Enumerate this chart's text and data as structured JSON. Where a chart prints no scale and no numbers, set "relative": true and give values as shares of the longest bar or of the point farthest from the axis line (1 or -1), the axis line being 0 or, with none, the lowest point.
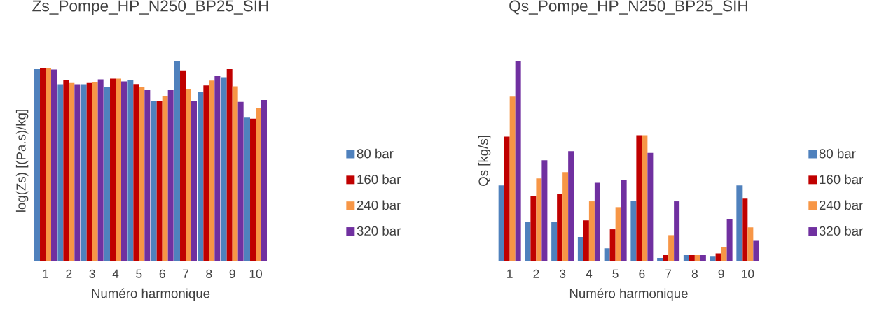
{
  "chart_data": [
    {
      "type": "bar",
      "title": "Zs_Pompe_HP_N250_BP25_SIH",
      "xlabel": "Numéro harmonique",
      "ylabel": "log(Zs) [(Pa.s)/kg]",
      "relative": true,
      "legend": "right",
      "categories": [
        "1",
        "2",
        "3",
        "4",
        "5",
        "6",
        "7",
        "8",
        "9",
        "10"
      ],
      "series": [
        {
          "name": "80 bar",
          "color": "#4f81bd",
          "values": [
            0.958,
            0.883,
            0.883,
            0.868,
            0.903,
            0.8,
            1.0,
            0.845,
            0.918,
            0.716
          ]
        },
        {
          "name": "160 bar",
          "color": "#c00000",
          "values": [
            0.964,
            0.905,
            0.889,
            0.911,
            0.884,
            0.8,
            0.952,
            0.877,
            0.958,
            0.711
          ]
        },
        {
          "name": "240 bar",
          "color": "#f79646",
          "values": [
            0.964,
            0.889,
            0.895,
            0.911,
            0.868,
            0.825,
            0.859,
            0.901,
            0.872,
            0.763
          ]
        },
        {
          "name": "320 bar",
          "color": "#7030a0",
          "values": [
            0.956,
            0.883,
            0.907,
            0.897,
            0.853,
            0.853,
            0.798,
            0.923,
            0.795,
            0.804
          ]
        }
      ]
    },
    {
      "type": "bar",
      "title": "Qs_Pompe_HP_N250_BP25_SIH",
      "xlabel": "Numéro harmonique",
      "ylabel": "Qs [kg/s]",
      "relative": true,
      "legend": "right",
      "categories": [
        "1",
        "2",
        "3",
        "4",
        "5",
        "6",
        "7",
        "8",
        "9",
        "10"
      ],
      "series": [
        {
          "name": "80 bar",
          "color": "#4f81bd",
          "values": [
            0.377,
            0.196,
            0.196,
            0.119,
            0.062,
            0.3,
            0.014,
            0.028,
            0.024,
            0.377
          ]
        },
        {
          "name": "160 bar",
          "color": "#c00000",
          "values": [
            0.621,
            0.323,
            0.335,
            0.202,
            0.157,
            0.628,
            0.028,
            0.028,
            0.037,
            0.31
          ]
        },
        {
          "name": "240 bar",
          "color": "#f79646",
          "values": [
            0.821,
            0.412,
            0.443,
            0.297,
            0.268,
            0.628,
            0.128,
            0.028,
            0.069,
            0.167
          ]
        },
        {
          "name": "320 bar",
          "color": "#7030a0",
          "values": [
            1.0,
            0.503,
            0.548,
            0.39,
            0.403,
            0.539,
            0.297,
            0.028,
            0.209,
            0.1
          ]
        }
      ]
    }
  ]
}
